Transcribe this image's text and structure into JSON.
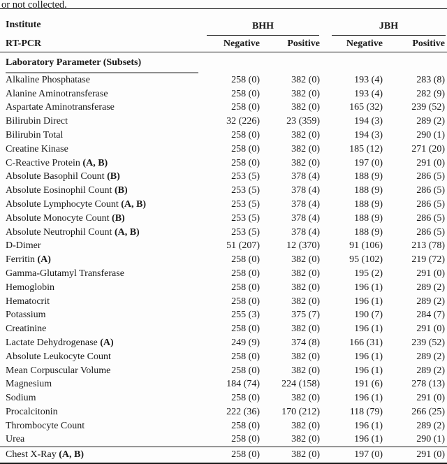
{
  "caption_fragment": "or not collected.",
  "table": {
    "header": {
      "row1_left": "Institute",
      "groups": [
        "BHH",
        "JBH"
      ],
      "row2_left": "RT-PCR",
      "subheaders": [
        "Negative",
        "Positive",
        "Negative",
        "Positive"
      ]
    },
    "section_header": "Laboratory Parameter (Subsets)",
    "rows": [
      {
        "name": "Alkaline Phosphatase",
        "marker": "",
        "values": [
          "258 (0)",
          "382 (0)",
          "193 (4)",
          "283 (8)"
        ]
      },
      {
        "name": "Alanine Aminotransferase",
        "marker": "",
        "values": [
          "258 (0)",
          "382 (0)",
          "193 (4)",
          "282 (9)"
        ]
      },
      {
        "name": "Aspartate Aminotransferase",
        "marker": "",
        "values": [
          "258 (0)",
          "382 (0)",
          "165 (32)",
          "239 (52)"
        ]
      },
      {
        "name": "Bilirubin Direct",
        "marker": "",
        "values": [
          "32 (226)",
          "23 (359)",
          "194 (3)",
          "289 (2)"
        ]
      },
      {
        "name": "Bilirubin Total",
        "marker": "",
        "values": [
          "258 (0)",
          "382 (0)",
          "194 (3)",
          "290 (1)"
        ]
      },
      {
        "name": "Creatine Kinase",
        "marker": "",
        "values": [
          "258 (0)",
          "382 (0)",
          "185 (12)",
          "271 (20)"
        ]
      },
      {
        "name": "C-Reactive Protein",
        "marker": "(A, B)",
        "values": [
          "258 (0)",
          "382 (0)",
          "197 (0)",
          "291 (0)"
        ]
      },
      {
        "name": "Absolute Basophil Count",
        "marker": "(B)",
        "values": [
          "253 (5)",
          "378 (4)",
          "188 (9)",
          "286 (5)"
        ]
      },
      {
        "name": "Absolute Eosinophil Count",
        "marker": "(B)",
        "values": [
          "253 (5)",
          "378 (4)",
          "188 (9)",
          "286 (5)"
        ]
      },
      {
        "name": "Absolute Lymphocyte Count",
        "marker": "(A, B)",
        "values": [
          "253 (5)",
          "378 (4)",
          "188 (9)",
          "286 (5)"
        ]
      },
      {
        "name": "Absolute Monocyte Count",
        "marker": "(B)",
        "values": [
          "253 (5)",
          "378 (4)",
          "188 (9)",
          "286 (5)"
        ]
      },
      {
        "name": "Absolute Neutrophil Count",
        "marker": "(A, B)",
        "values": [
          "253 (5)",
          "378 (4)",
          "188 (9)",
          "286 (5)"
        ]
      },
      {
        "name": "D-Dimer",
        "marker": "",
        "values": [
          "51 (207)",
          "12 (370)",
          "91 (106)",
          "213 (78)"
        ]
      },
      {
        "name": "Ferritin",
        "marker": "(A)",
        "values": [
          "258 (0)",
          "382 (0)",
          "95 (102)",
          "219 (72)"
        ]
      },
      {
        "name": "Gamma-Glutamyl Transferase",
        "marker": "",
        "values": [
          "258 (0)",
          "382 (0)",
          "195 (2)",
          "291 (0)"
        ]
      },
      {
        "name": "Hemoglobin",
        "marker": "",
        "values": [
          "258 (0)",
          "382 (0)",
          "196 (1)",
          "289 (2)"
        ]
      },
      {
        "name": "Hematocrit",
        "marker": "",
        "values": [
          "258 (0)",
          "382 (0)",
          "196 (1)",
          "289 (2)"
        ]
      },
      {
        "name": "Potassium",
        "marker": "",
        "values": [
          "255 (3)",
          "375 (7)",
          "190 (7)",
          "284 (7)"
        ]
      },
      {
        "name": "Creatinine",
        "marker": "",
        "values": [
          "258 (0)",
          "382 (0)",
          "196 (1)",
          "291 (0)"
        ]
      },
      {
        "name": "Lactate Dehydrogenase",
        "marker": "(A)",
        "values": [
          "249 (9)",
          "374 (8)",
          "166 (31)",
          "239 (52)"
        ]
      },
      {
        "name": "Absolute Leukocyte Count",
        "marker": "",
        "values": [
          "258 (0)",
          "382 (0)",
          "196 (1)",
          "289 (2)"
        ]
      },
      {
        "name": "Mean Corpuscular Volume",
        "marker": "",
        "values": [
          "258 (0)",
          "382 (0)",
          "196 (1)",
          "289 (2)"
        ]
      },
      {
        "name": "Magnesium",
        "marker": "",
        "values": [
          "184 (74)",
          "224 (158)",
          "191 (6)",
          "278 (13)"
        ]
      },
      {
        "name": "Sodium",
        "marker": "",
        "values": [
          "258 (0)",
          "382 (0)",
          "196 (1)",
          "291 (0)"
        ]
      },
      {
        "name": "Procalcitonin",
        "marker": "",
        "values": [
          "222 (36)",
          "170 (212)",
          "118 (79)",
          "266 (25)"
        ]
      },
      {
        "name": "Thrombocyte Count",
        "marker": "",
        "values": [
          "258 (0)",
          "382 (0)",
          "196 (1)",
          "289 (2)"
        ]
      },
      {
        "name": "Urea",
        "marker": "",
        "values": [
          "258 (0)",
          "382 (0)",
          "196 (1)",
          "290 (1)"
        ]
      }
    ],
    "footer_row": {
      "name": "Chest X-Ray",
      "marker": "(A, B)",
      "values": [
        "258 (0)",
        "382 (0)",
        "197 (0)",
        "291 (0)"
      ]
    }
  },
  "colors": {
    "text": "#1a1a1a",
    "rule": "#1a1a1a",
    "section_rule": "#8e8e8e",
    "background": "#fdfdfd"
  }
}
